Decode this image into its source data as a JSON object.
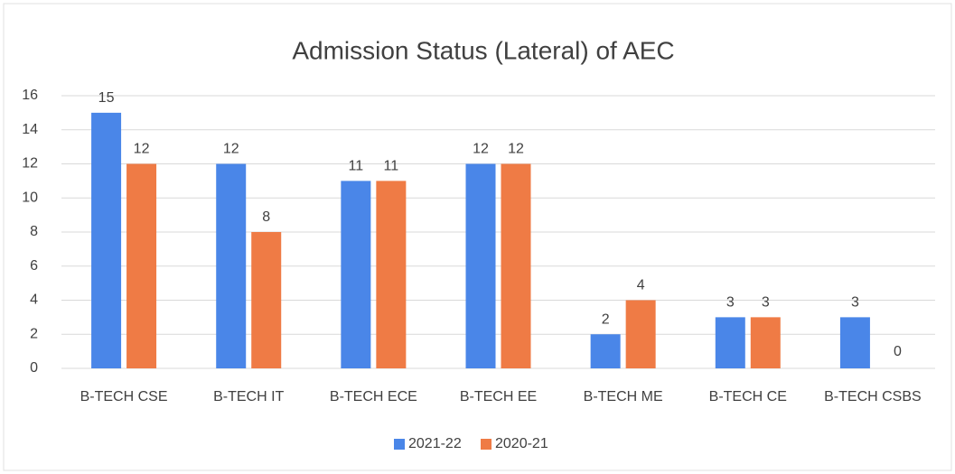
{
  "chart_data": {
    "type": "bar",
    "title": "Admission Status (Lateral) of AEC",
    "categories": [
      "B-TECH CSE",
      "B-TECH IT",
      "B-TECH ECE",
      "B-TECH EE",
      "B-TECH ME",
      "B-TECH CE",
      "B-TECH CSBS"
    ],
    "series": [
      {
        "name": "2021-22",
        "color": "#4a86e8",
        "values": [
          15,
          12,
          11,
          12,
          2,
          3,
          3
        ]
      },
      {
        "name": "2020-21",
        "color": "#ef7b45",
        "values": [
          12,
          8,
          11,
          12,
          4,
          3,
          0
        ]
      }
    ],
    "ylim": [
      0,
      16
    ],
    "yticks": [
      0,
      2,
      4,
      6,
      8,
      10,
      12,
      14,
      16
    ],
    "grid": true,
    "legend": "bottom"
  }
}
